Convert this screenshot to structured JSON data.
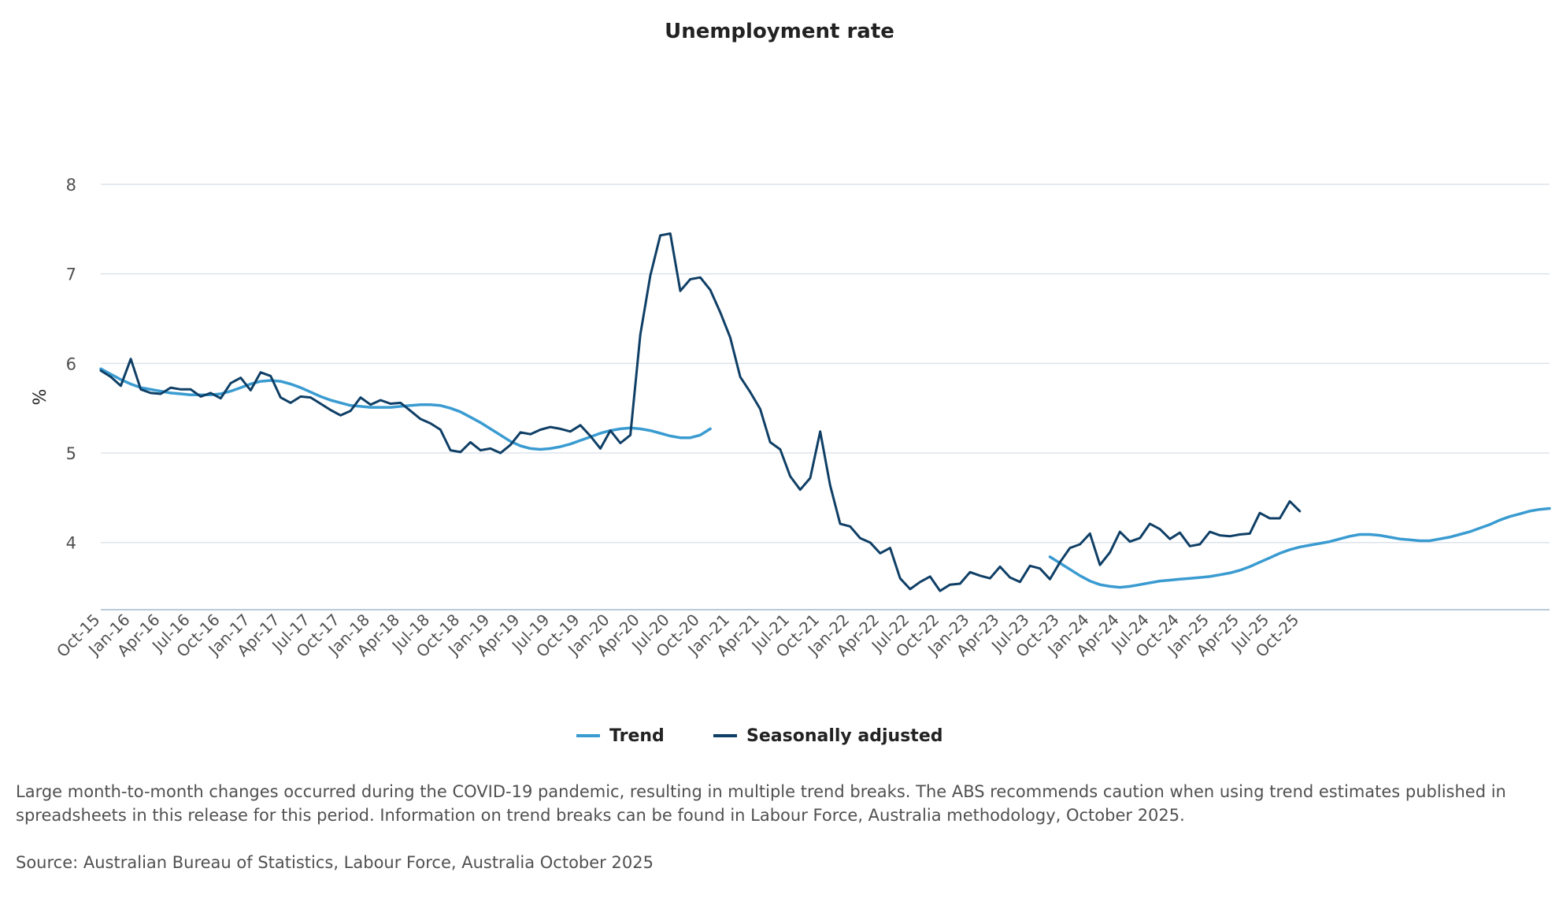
{
  "chart_data": {
    "type": "line",
    "title": "Unemployment rate",
    "ylabel": "%",
    "xlabel": "",
    "ylim": [
      3.25,
      8
    ],
    "yticks": [
      4,
      5,
      6,
      7,
      8
    ],
    "grid": true,
    "legend_position": "bottom-center",
    "x_start": "Oct-15",
    "x_end": "Oct-25",
    "xticks": [
      "Oct-15",
      "Jan-16",
      "Apr-16",
      "Jul-16",
      "Oct-16",
      "Jan-17",
      "Apr-17",
      "Jul-17",
      "Oct-17",
      "Jan-18",
      "Apr-18",
      "Jul-18",
      "Oct-18",
      "Jan-19",
      "Apr-19",
      "Jul-19",
      "Oct-19",
      "Jan-20",
      "Apr-20",
      "Jul-20",
      "Oct-20",
      "Jan-21",
      "Apr-21",
      "Jul-21",
      "Oct-21",
      "Jan-22",
      "Apr-22",
      "Jul-22",
      "Oct-22",
      "Jan-23",
      "Apr-23",
      "Jul-23",
      "Oct-23",
      "Jan-24",
      "Apr-24",
      "Jul-24",
      "Oct-24",
      "Jan-25",
      "Apr-25",
      "Jul-25",
      "Oct-25"
    ],
    "series": [
      {
        "name": "Trend",
        "color": "#3a9bd1",
        "values": [
          5.94,
          5.88,
          5.82,
          5.77,
          5.73,
          5.71,
          5.69,
          5.67,
          5.66,
          5.65,
          5.65,
          5.65,
          5.66,
          5.69,
          5.73,
          5.77,
          5.8,
          5.81,
          5.8,
          5.77,
          5.73,
          5.68,
          5.63,
          5.59,
          5.56,
          5.53,
          5.52,
          5.51,
          5.51,
          5.51,
          5.52,
          5.53,
          5.54,
          5.54,
          5.53,
          5.5,
          5.46,
          5.4,
          5.34,
          5.27,
          5.2,
          5.13,
          5.08,
          5.05,
          5.04,
          5.05,
          5.07,
          5.1,
          5.14,
          5.18,
          5.22,
          5.25,
          5.27,
          5.28,
          5.27,
          5.25,
          5.22,
          5.19,
          5.17,
          5.17,
          5.2,
          5.27,
          null,
          null,
          null,
          null,
          null,
          null,
          null,
          null,
          null,
          null,
          null,
          null,
          null,
          null,
          null,
          null,
          null,
          null,
          null,
          null,
          null,
          null,
          null,
          null,
          null,
          null,
          null,
          null,
          null,
          null,
          null,
          null,
          null,
          3.84,
          3.77,
          3.7,
          3.63,
          3.57,
          3.53,
          3.51,
          3.5,
          3.51,
          3.53,
          3.55,
          3.57,
          3.58,
          3.59,
          3.6,
          3.61,
          3.62,
          3.64,
          3.66,
          3.69,
          3.73,
          3.78,
          3.83,
          3.88,
          3.92,
          3.95,
          3.97,
          3.99,
          4.01,
          4.04,
          4.07,
          4.09,
          4.09,
          4.08,
          4.06,
          4.04,
          4.03,
          4.02,
          4.02,
          4.04,
          4.06,
          4.09,
          4.12,
          4.16,
          4.2,
          4.25,
          4.29,
          4.32,
          4.35,
          4.37,
          4.38
        ]
      },
      {
        "name": "Seasonally adjusted",
        "color": "#0f3f66",
        "values": [
          5.92,
          5.85,
          5.75,
          6.05,
          5.71,
          5.67,
          5.66,
          5.73,
          5.71,
          5.71,
          5.63,
          5.67,
          5.61,
          5.78,
          5.84,
          5.7,
          5.9,
          5.86,
          5.62,
          5.56,
          5.63,
          5.62,
          5.55,
          5.48,
          5.42,
          5.47,
          5.62,
          5.54,
          5.59,
          5.55,
          5.56,
          5.47,
          5.38,
          5.33,
          5.26,
          5.03,
          5.01,
          5.12,
          5.03,
          5.05,
          5.0,
          5.09,
          5.23,
          5.21,
          5.26,
          5.29,
          5.27,
          5.24,
          5.31,
          5.19,
          5.05,
          5.25,
          5.11,
          5.2,
          6.32,
          6.98,
          7.43,
          7.45,
          6.81,
          6.94,
          6.96,
          6.82,
          6.57,
          6.29,
          5.85,
          5.68,
          5.49,
          5.12,
          5.04,
          4.74,
          4.59,
          4.72,
          5.24,
          4.64,
          4.21,
          4.18,
          4.05,
          4.0,
          3.88,
          3.94,
          3.6,
          3.48,
          3.56,
          3.62,
          3.46,
          3.53,
          3.54,
          3.67,
          3.63,
          3.6,
          3.73,
          3.61,
          3.56,
          3.74,
          3.71,
          3.59,
          3.78,
          3.94,
          3.98,
          4.1,
          3.75,
          3.89,
          4.12,
          4.01,
          4.05,
          4.21,
          4.15,
          4.04,
          4.11,
          3.96,
          3.98,
          4.12,
          4.08,
          4.07,
          4.09,
          4.1,
          4.33,
          4.27,
          4.27,
          4.46,
          4.35
        ]
      }
    ],
    "note": "Large month-to-month changes occurred during the COVID-19 pandemic, resulting in multiple trend breaks. The ABS recommends caution when using trend estimates published in spreadsheets in this release for this period. Information on trend breaks can be found in Labour Force, Australia methodology, October 2025.",
    "source": "Source: Australian Bureau of Statistics, Labour Force, Australia October 2025"
  },
  "colors": {
    "grid": "#dde3ea",
    "axis": "#b7cbdc",
    "text": "#222222",
    "tick_text": "#505050"
  }
}
